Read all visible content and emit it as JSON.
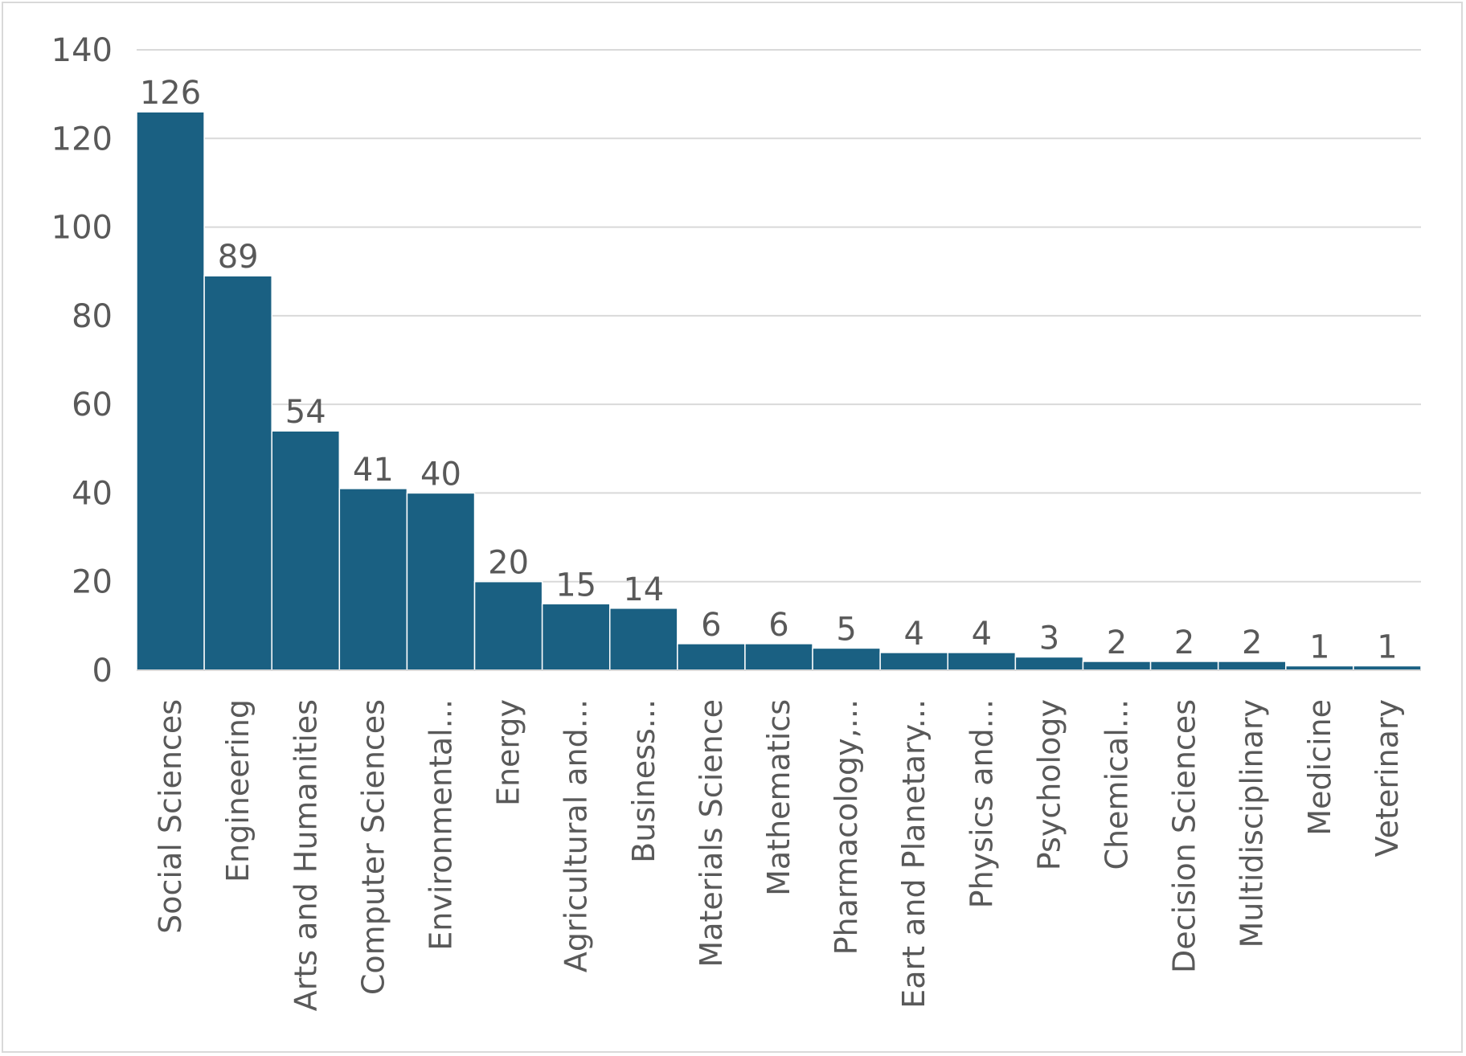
{
  "chart_data": {
    "type": "bar",
    "title": "",
    "xlabel": "",
    "ylabel": "",
    "categories": [
      "Social Sciences",
      "Engineering",
      "Arts and Humanities",
      "Computer Sciences",
      "Environmental...",
      "Energy",
      "Agricultural and...",
      "Business...",
      "Materials Science",
      "Mathematics",
      "Pharmacology,...",
      "Eart and Planetary...",
      "Physics and...",
      "Psychology",
      "Chemical...",
      "Decision Sciences",
      "Multidisciplinary",
      "Medicine",
      "Veterinary"
    ],
    "values": [
      126,
      89,
      54,
      41,
      40,
      20,
      15,
      14,
      6,
      6,
      5,
      4,
      4,
      3,
      2,
      2,
      2,
      1,
      1
    ],
    "ylim": [
      0,
      140
    ],
    "yticks": [
      0,
      20,
      40,
      60,
      80,
      100,
      120,
      140
    ],
    "grid": true,
    "legend": "none",
    "colors": {
      "bar": "#1a6082",
      "bar_edge": "#ffffff",
      "grid": "#d9d9d9",
      "text": "#595959"
    }
  }
}
